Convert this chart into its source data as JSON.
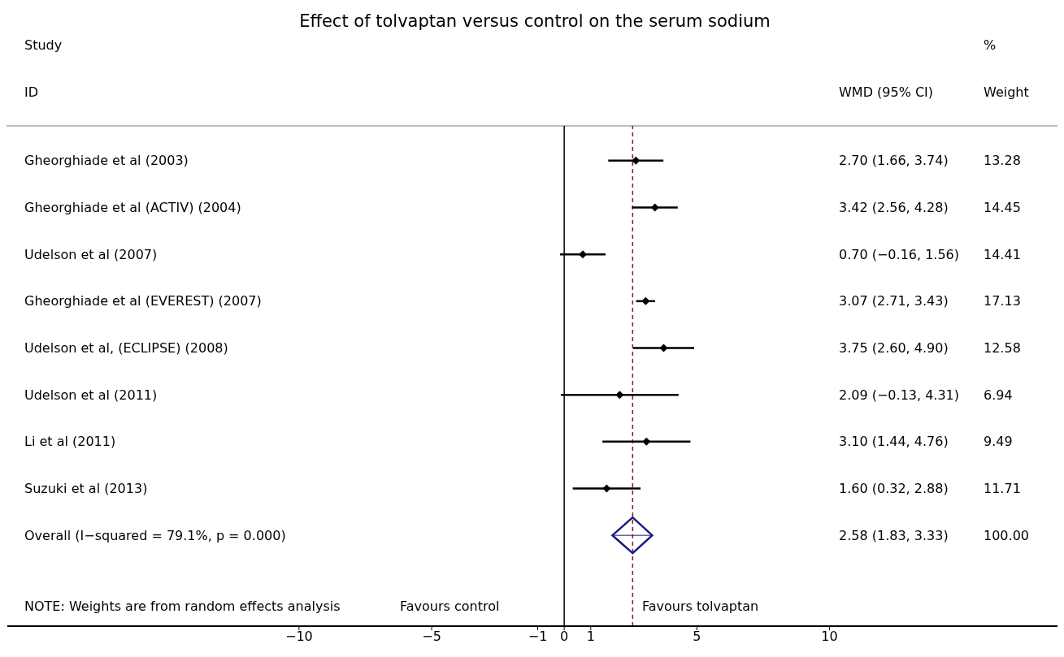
{
  "chart_data": {
    "type": "scatter",
    "orientation": "horizontal",
    "title": "Effect of tolvaptan versus control on the serum sodium",
    "categories": [
      "Gheorghiade et al (2003)",
      "Gheorghiade et al (ACTIV) (2004)",
      "Udelson et al (2007)",
      "Gheorghiade et al (EVEREST) (2007)",
      "Udelson et al,  (ECLIPSE) (2008)",
      "Udelson et al (2011)",
      "Li et al (2011)",
      "Suzuki et al (2013)",
      "Overall  (I−squared = 79.1%, p = 0.000)"
    ],
    "series": [
      {
        "values": [
          2.7,
          3.42,
          0.7,
          3.07,
          3.75,
          2.09,
          3.1,
          1.6,
          null
        ],
        "color": "#000000",
        "marker": "diamond",
        "errors": [
          [
            1.66,
            3.74
          ],
          [
            2.56,
            4.28
          ],
          [
            -0.16,
            1.56
          ],
          [
            2.71,
            3.43
          ],
          [
            2.6,
            4.9
          ],
          [
            -0.13,
            4.31
          ],
          [
            1.44,
            4.76
          ],
          [
            0.32,
            2.88
          ],
          null
        ]
      },
      {
        "values": [
          null,
          null,
          null,
          null,
          null,
          null,
          null,
          null,
          2.58
        ],
        "color": "#1a1a80",
        "errors": [
          null,
          null,
          null,
          null,
          null,
          null,
          null,
          null,
          [
            1.83,
            3.33
          ]
        ]
      }
    ],
    "xlim": [
      -21,
      18.6
    ],
    "xticks": [
      {
        "value": -10,
        "label": "−10"
      },
      {
        "value": -5,
        "label": "−5"
      },
      {
        "value": -1,
        "label": "−1"
      },
      0,
      1,
      5,
      10
    ],
    "ref_lines": [
      {
        "axis": "x",
        "value": 0,
        "color": "#000000"
      },
      {
        "axis": "x",
        "value": 2.58,
        "color": "#8b1a1a",
        "line_style": "dashed"
      }
    ],
    "annotations": [
      "Study",
      "ID",
      "%",
      "Weight",
      "WMD (95% CI)",
      "NOTE: Weights are from random effects analysis",
      "Favours control",
      "Favours tolvaptan",
      "2.70 (1.66, 3.74)",
      "3.42 (2.56, 4.28)",
      "0.70 (−0.16, 1.56)",
      "3.07 (2.71, 3.43)",
      "3.75 (2.60, 4.90)",
      "2.09 (−0.13, 4.31)",
      "3.10 (1.44, 4.76)",
      "1.60 (0.32, 2.88)",
      "2.58 (1.83, 3.33)",
      "13.28",
      "14.45",
      "14.41",
      "17.13",
      "12.58",
      "6.94",
      "9.49",
      "11.71",
      "100.00"
    ]
  }
}
